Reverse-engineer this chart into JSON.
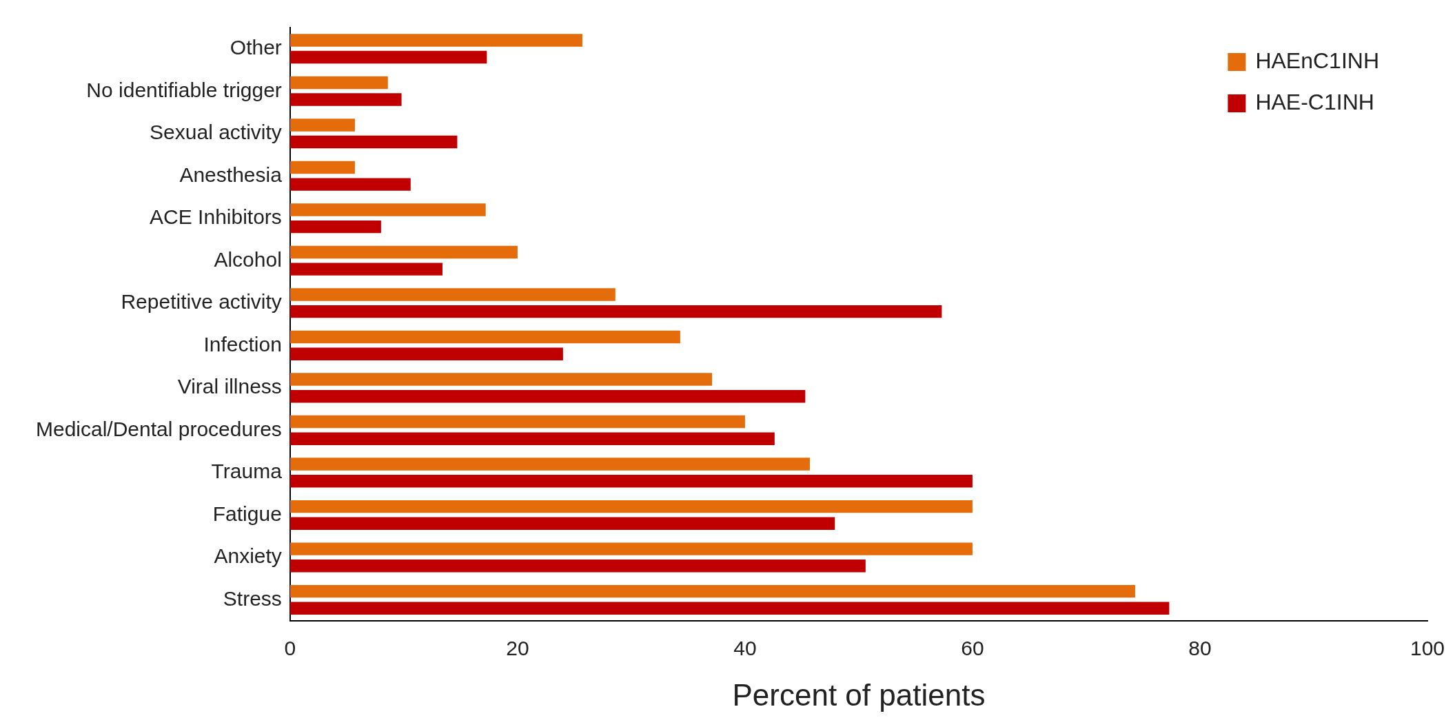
{
  "chart_data": {
    "type": "bar",
    "orientation": "horizontal",
    "xlabel": "Percent of patients",
    "categories": [
      "Other",
      "No identifiable trigger",
      "Sexual activity",
      "Anesthesia",
      "ACE Inhibitors",
      "Alcohol",
      "Repetitive activity",
      "Infection",
      "Viral illness",
      "Medical/Dental procedures",
      "Trauma",
      "Fatigue",
      "Anxiety",
      "Stress"
    ],
    "series": [
      {
        "name": "HAEnC1INH",
        "color": "#e46c0a",
        "values": [
          25.7,
          8.6,
          5.7,
          5.7,
          17.2,
          20.0,
          28.6,
          34.3,
          37.1,
          40.0,
          45.7,
          60.0,
          60.0,
          74.3
        ]
      },
      {
        "name": "HAE-C1INH",
        "color": "#c00000",
        "values": [
          17.3,
          9.8,
          14.7,
          10.6,
          8.0,
          13.4,
          57.3,
          24.0,
          45.3,
          42.6,
          60.0,
          47.9,
          50.6,
          77.3
        ]
      }
    ],
    "xlim": [
      0,
      100
    ],
    "xticks": [
      0,
      20,
      40,
      60,
      80,
      100
    ],
    "grid": false,
    "legend": "top right"
  }
}
